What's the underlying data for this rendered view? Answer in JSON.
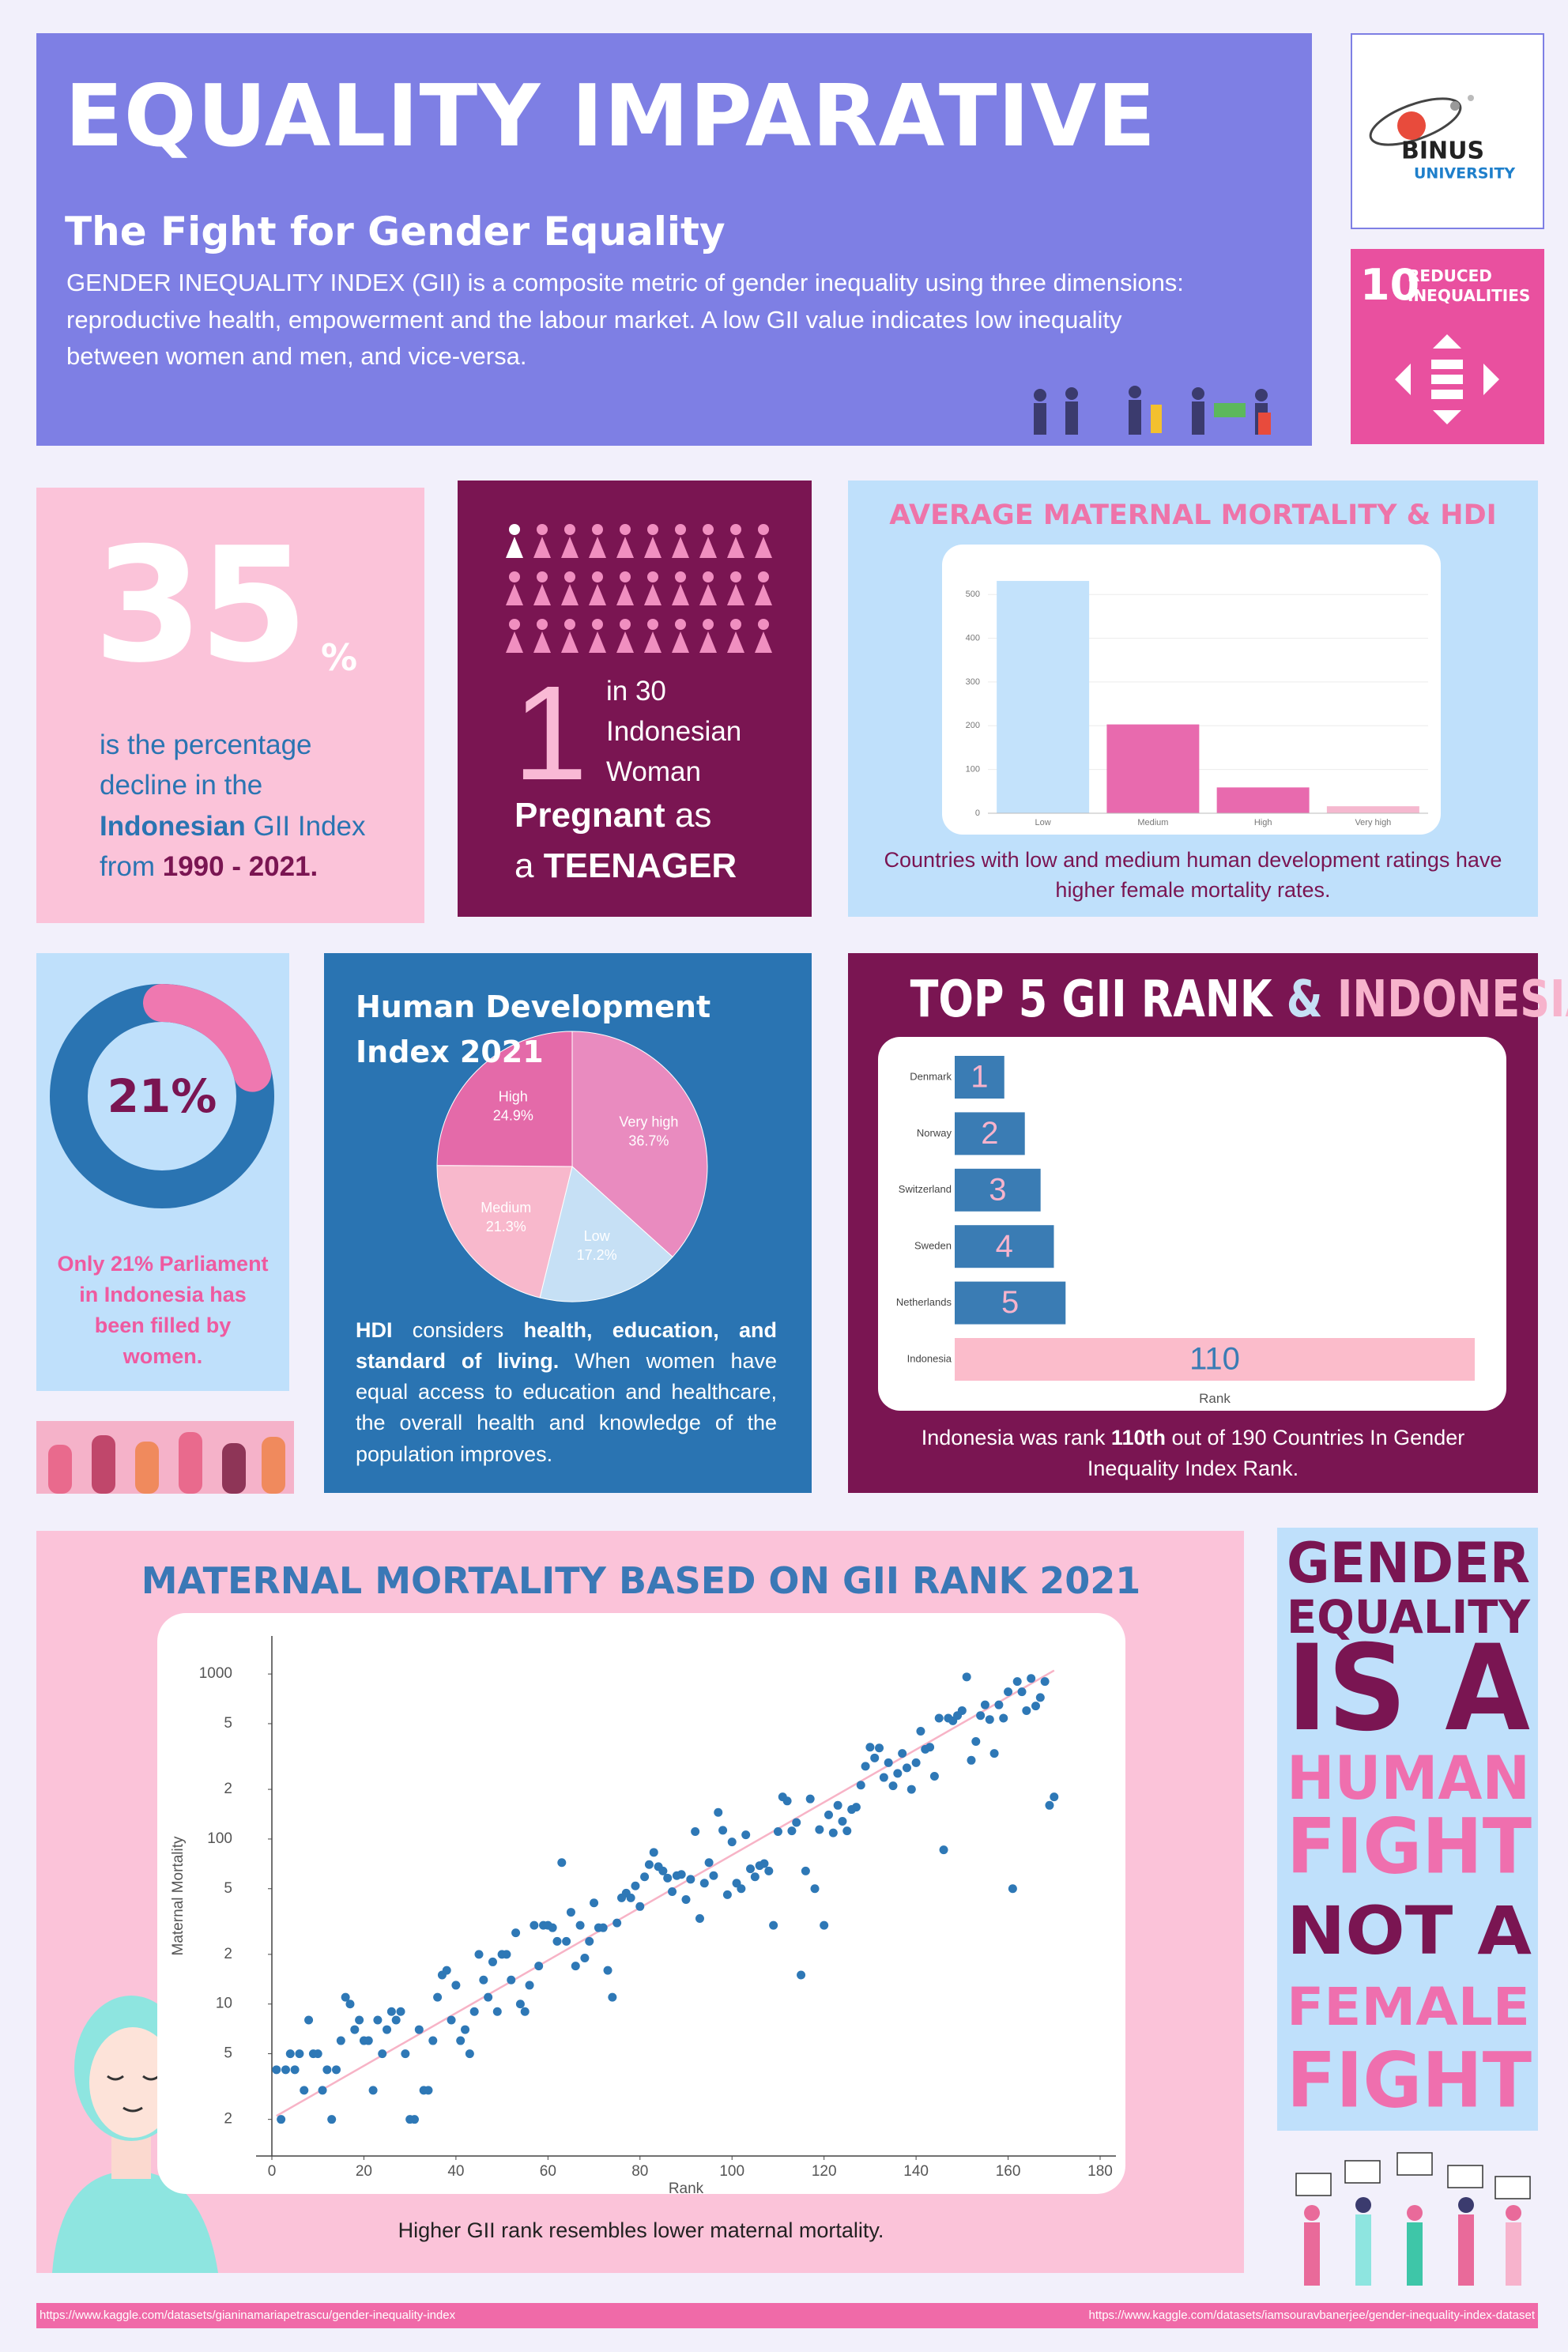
{
  "header": {
    "title": "EQUALITY IMPARATIVE",
    "subtitle": "The Fight for Gender Equality",
    "description": "GENDER INEQUALITY INDEX (GII) is a composite metric of gender inequality using three dimensions: reproductive health, empowerment and the labour market. A low GII value indicates low inequality between women and men, and vice-versa."
  },
  "logo": {
    "name": "BINUS",
    "sub": "UNIVERSITY"
  },
  "sdg": {
    "number": "10",
    "label": "REDUCED INEQUALITIES"
  },
  "stat_decline": {
    "value": "35",
    "unit": "%",
    "text": "is the percentage decline in the",
    "highlight": "Indonesian",
    "text2": "GII Index",
    "text3": "from",
    "period": "1990 - 2021."
  },
  "stat_teen": {
    "value": "1",
    "line1": "in 30",
    "line2": "Indonesian",
    "line3": "Woman",
    "bold1": "Pregnant",
    "text1": "as",
    "text2": "a",
    "bold2": "TEENAGER"
  },
  "hdi_note": {
    "lead": "HDI",
    "text1": "considers",
    "bold": "health, education, and standard of living.",
    "text2": "When women have equal access to education and healthcare, the overall health and knowledge of the population improves."
  },
  "slogan": [
    "GENDER",
    "EQUALITY",
    "IS A",
    "HUMAN",
    "FIGHT",
    "NOT A",
    "FEMALE",
    "FIGHT"
  ],
  "footer": {
    "left": "https://www.kaggle.com/datasets/gianinamariapetrascu/gender-inequality-index",
    "right": "https://www.kaggle.com/datasets/iamsouravbanerjee/gender-inequality-index-dataset"
  },
  "chart_data": [
    {
      "type": "bar",
      "title": "AVERAGE MATERNAL MORTALITY & HDI",
      "categories": [
        "Low",
        "Medium",
        "High",
        "Very high"
      ],
      "values": [
        531,
        203,
        59,
        16
      ],
      "colors": [
        "#c3e2fb",
        "#e86aae",
        "#e86aae",
        "#f5b8cf"
      ],
      "ylim": [
        0,
        560
      ],
      "yticks": [
        0,
        100,
        200,
        300,
        400,
        500
      ],
      "grid": true,
      "caption": "Countries with low and medium human development ratings have higher female mortality rates."
    },
    {
      "type": "donut",
      "values": [
        21
      ],
      "value_labels": [
        "21%"
      ],
      "color": "#ef78b0",
      "track_color": "#2a74b2",
      "caption": "Only 21% Parliament in Indonesia has been filled by women."
    },
    {
      "type": "pie",
      "title": "Human Development Index 2021",
      "categories": [
        "Very high",
        "Low",
        "Medium",
        "High"
      ],
      "values": [
        36.7,
        17.2,
        21.3,
        24.9
      ],
      "value_labels": [
        "36.7%",
        "17.2%",
        "21.3%",
        "24.9%"
      ],
      "colors": [
        "#e98bbf",
        "#c6e0f5",
        "#f8b8cc",
        "#e46aa9"
      ]
    },
    {
      "type": "hbar",
      "title": "TOP 5 GII RANK",
      "title_joiner": "&",
      "title_highlight": "INDONESIA",
      "categories": [
        "Denmark",
        "Norway",
        "Switzerland",
        "Sweden",
        "Netherlands",
        "Indonesia"
      ],
      "values": [
        1,
        2,
        3,
        4,
        5,
        110
      ],
      "colors": [
        "#3a7cb4",
        "#3a7cb4",
        "#3a7cb4",
        "#3a7cb4",
        "#3a7cb4",
        "#fbbccb"
      ],
      "label_colors": [
        "#f7b3cc",
        "#f7b3cc",
        "#f7b3cc",
        "#f7b3cc",
        "#f7b3cc",
        "#3a7cb4"
      ],
      "xscale": "sqrt",
      "xlim": [
        0,
        110
      ],
      "xlabel": "Rank",
      "caption_lead": "Indonesia was rank",
      "caption_bold": "110th",
      "caption_rest": "out of 190 Countries In Gender Inequality Index Rank."
    },
    {
      "type": "scatter",
      "title": "MATERNAL MORTALITY BASED ON GII RANK 2021",
      "xlabel": "Rank",
      "ylabel": "Maternal Mortality",
      "caption": "Higher GII rank resembles lower maternal mortality.",
      "color": "#2e78b6",
      "log_y": true,
      "xlim": [
        0,
        180
      ],
      "xticks": [
        0,
        20,
        40,
        60,
        80,
        100,
        120,
        140,
        160,
        180
      ],
      "ylim": [
        1.2,
        1700
      ],
      "yticks": [
        2,
        5,
        10,
        {
          "value": 20,
          "label": "2"
        },
        {
          "value": 50,
          "label": "5"
        },
        100,
        {
          "value": 200,
          "label": "2"
        },
        {
          "value": 500,
          "label": "5"
        },
        1000
      ],
      "trendline": {
        "x": [
          1,
          170
        ],
        "values": [
          2.1,
          1050
        ],
        "color": "#f7b3c6"
      },
      "x": [
        1,
        2,
        3,
        4,
        5,
        6,
        7,
        8,
        9,
        10,
        11,
        12,
        13,
        14,
        15,
        16,
        17,
        18,
        19,
        20,
        21,
        22,
        23,
        24,
        25,
        26,
        27,
        28,
        29,
        30,
        31,
        32,
        33,
        34,
        35,
        36,
        37,
        38,
        39,
        40,
        41,
        42,
        43,
        44,
        45,
        46,
        47,
        48,
        49,
        50,
        51,
        52,
        53,
        54,
        55,
        56,
        57,
        58,
        59,
        60,
        61,
        62,
        63,
        64,
        65,
        66,
        67,
        68,
        69,
        70,
        71,
        72,
        73,
        74,
        75,
        76,
        77,
        78,
        79,
        80,
        81,
        82,
        83,
        84,
        85,
        86,
        87,
        88,
        89,
        90,
        91,
        92,
        93,
        94,
        95,
        96,
        97,
        98,
        99,
        100,
        101,
        102,
        103,
        104,
        105,
        106,
        107,
        108,
        109,
        110,
        111,
        112,
        113,
        114,
        115,
        116,
        117,
        118,
        119,
        120,
        121,
        122,
        123,
        124,
        125,
        126,
        127,
        128,
        129,
        130,
        131,
        132,
        133,
        134,
        135,
        136,
        137,
        138,
        139,
        140,
        141,
        142,
        143,
        144,
        145,
        146,
        147,
        148,
        149,
        150,
        151,
        152,
        153,
        154,
        155,
        156,
        157,
        158,
        159,
        160,
        161,
        162,
        163,
        164,
        165,
        166,
        167,
        168,
        169,
        170
      ],
      "values": [
        4,
        2,
        4,
        5,
        4,
        5,
        3,
        8,
        5,
        5,
        3,
        4,
        2,
        4,
        6,
        11,
        10,
        7,
        8,
        6,
        6,
        3,
        8,
        5,
        7,
        9,
        8,
        9,
        5,
        2,
        2,
        7,
        3,
        3,
        6,
        11,
        15,
        16,
        8,
        13,
        6,
        7,
        5,
        9,
        20,
        14,
        11,
        18,
        9,
        20,
        20,
        14,
        27,
        10,
        9,
        13,
        30,
        17,
        30,
        30,
        29,
        24,
        72,
        24,
        36,
        17,
        30,
        19,
        24,
        41,
        29,
        29,
        16,
        11,
        31,
        44,
        47,
        44,
        52,
        39,
        59,
        70,
        83,
        68,
        64,
        58,
        48,
        60,
        61,
        43,
        57,
        111,
        33,
        54,
        72,
        60,
        145,
        113,
        46,
        96,
        54,
        50,
        106,
        66,
        59,
        69,
        71,
        64,
        30,
        111,
        180,
        170,
        112,
        126,
        15,
        64,
        175,
        50,
        114,
        30,
        140,
        109,
        160,
        128,
        112,
        151,
        156,
        212,
        276,
        360,
        310,
        356,
        236,
        290,
        210,
        250,
        330,
        270,
        200,
        290,
        450,
        350,
        360,
        240,
        540,
        86,
        540,
        520,
        560,
        600,
        960,
        300,
        390,
        560,
        650,
        530,
        330,
        650,
        540,
        780,
        50,
        900,
        780,
        600,
        940,
        640,
        720,
        900,
        160,
        180
      ]
    }
  ]
}
